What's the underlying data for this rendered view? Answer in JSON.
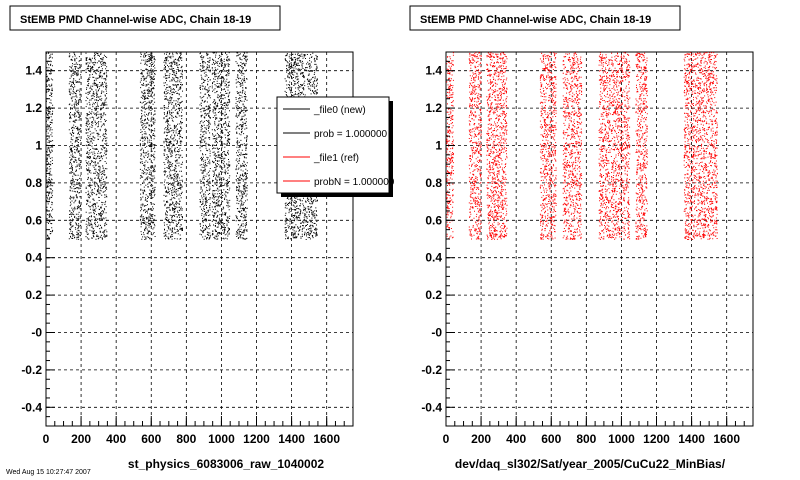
{
  "chart_data": [
    {
      "type": "scatter",
      "title": "StEMB PMD Channel-wise ADC, Chain 18-19",
      "xlabel": "st_physics_6083006_raw_1040002",
      "ylabel": "",
      "xlim": [
        0,
        1750
      ],
      "ylim": [
        -0.5,
        1.5
      ],
      "x_ticks": [
        "0",
        "200",
        "400",
        "600",
        "800",
        "1000",
        "1200",
        "1400",
        "1600"
      ],
      "y_ticks": [
        "-0.4",
        "-0.2",
        "-0",
        "0.2",
        "0.4",
        "0.6",
        "0.8",
        "1",
        "1.2",
        "1.4"
      ],
      "grid": true,
      "marker_color": "#000000",
      "point_y_range": [
        0.5,
        1.5
      ],
      "channel_bands": [
        [
          0,
          35
        ],
        [
          130,
          195
        ],
        [
          225,
          345
        ],
        [
          535,
          620
        ],
        [
          670,
          775
        ],
        [
          875,
          935
        ],
        [
          945,
          1045
        ],
        [
          1080,
          1145
        ],
        [
          1360,
          1545
        ]
      ],
      "series": [
        {
          "name": "_file0 (new)",
          "color": "#000000"
        },
        {
          "name": "prob = 1.000000",
          "color": "#000000"
        },
        {
          "name": "_file1 (ref)",
          "color": "#ff0000"
        },
        {
          "name": "probN = 1.000000",
          "color": "#ff0000"
        }
      ],
      "legend": "top-right",
      "footer_text": "Wed Aug 15 10:27:47 2007"
    },
    {
      "type": "scatter",
      "title": "StEMB PMD Channel-wise ADC, Chain 18-19",
      "xlabel": "dev/daq_sl302/Sat/year_2005/CuCu22_MinBias/",
      "ylabel": "",
      "xlim": [
        0,
        1750
      ],
      "ylim": [
        -0.5,
        1.5
      ],
      "x_ticks": [
        "0",
        "200",
        "400",
        "600",
        "800",
        "1000",
        "1200",
        "1400",
        "1600"
      ],
      "y_ticks": [
        "-0.4",
        "-0.2",
        "-0",
        "0.2",
        "0.4",
        "0.6",
        "0.8",
        "1",
        "1.2",
        "1.4"
      ],
      "grid": true,
      "marker_color": "#ff0000",
      "point_y_range": [
        0.5,
        1.5
      ],
      "channel_bands": [
        [
          0,
          40
        ],
        [
          130,
          200
        ],
        [
          230,
          345
        ],
        [
          535,
          625
        ],
        [
          665,
          770
        ],
        [
          870,
          935
        ],
        [
          940,
          1045
        ],
        [
          1080,
          1145
        ],
        [
          1355,
          1545
        ]
      ]
    }
  ]
}
